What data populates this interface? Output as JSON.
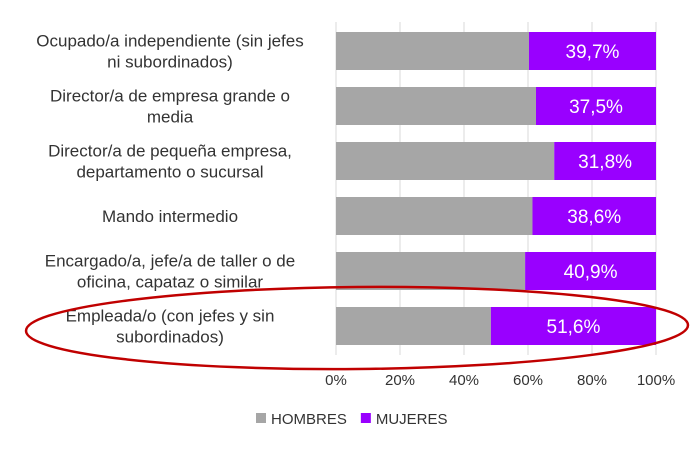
{
  "chart_data": {
    "type": "bar",
    "orientation": "horizontal",
    "stacked": "100%",
    "categories": [
      [
        "Ocupado/a independiente (sin jefes",
        "ni subordinados)"
      ],
      [
        "Director/a de empresa grande o",
        "media"
      ],
      [
        "Director/a de pequeña empresa,",
        "departamento o sucursal"
      ],
      [
        "Mando intermedio"
      ],
      [
        "Encargado/a, jefe/a de taller o de",
        "oficina, capataz o similar"
      ],
      [
        "Empleada/o (con jefes y sin",
        "subordinados)"
      ]
    ],
    "series": [
      {
        "name": "HOMBRES",
        "color": "#a6a6a6",
        "values": [
          60.3,
          62.5,
          68.2,
          61.4,
          59.1,
          48.4
        ]
      },
      {
        "name": "MUJERES",
        "color": "#9900ff",
        "values": [
          39.7,
          37.5,
          31.8,
          38.6,
          40.9,
          51.6
        ],
        "data_labels": [
          "39,7%",
          "37,5%",
          "31,8%",
          "38,6%",
          "40,9%",
          "51,6%"
        ]
      }
    ],
    "xlim": [
      0,
      100
    ],
    "x_ticks": [
      "0%",
      "20%",
      "40%",
      "60%",
      "80%",
      "100%"
    ],
    "grid": true,
    "legend": "bottom",
    "annotation": {
      "shape": "ellipse",
      "color": "#c00000",
      "highlights": "Empleada/o (con jefes y sin subordinados)"
    }
  }
}
